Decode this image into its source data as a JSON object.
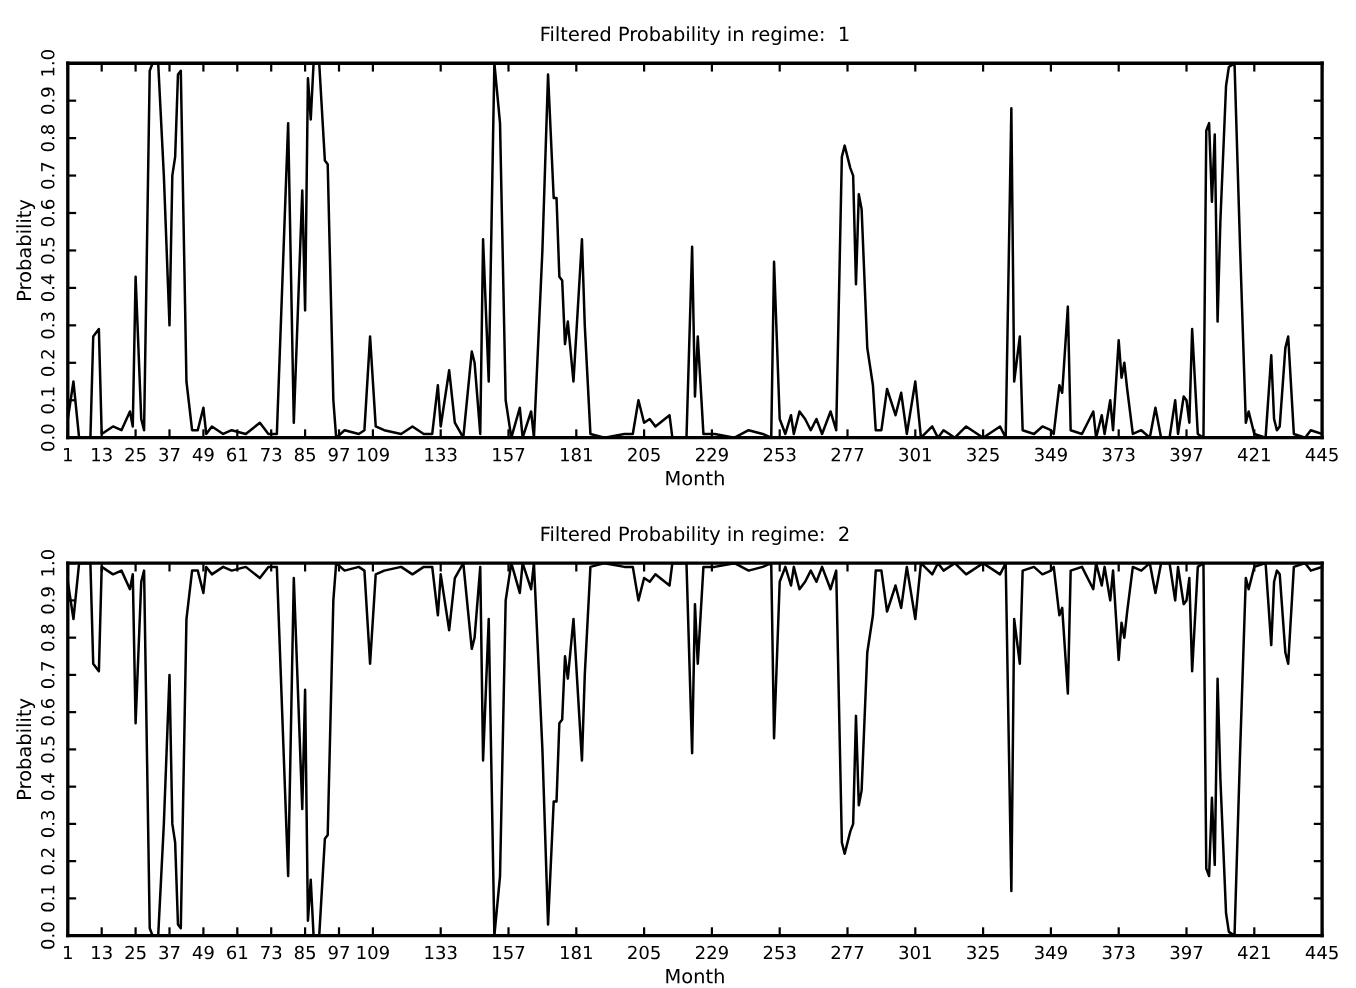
{
  "chart_data": [
    {
      "type": "line",
      "title": "Filtered Probability in regime:  1",
      "xlabel": "Month",
      "ylabel": "Probability",
      "x": [
        1,
        3,
        5,
        9,
        10,
        12,
        13,
        17,
        20,
        23,
        24,
        25,
        27,
        28,
        30,
        31,
        33,
        35,
        37,
        38,
        39,
        40,
        41,
        43,
        45,
        47,
        49,
        50,
        52,
        56,
        59,
        64,
        69,
        72,
        75,
        79,
        81,
        84,
        85,
        86,
        87,
        88,
        90,
        92,
        93,
        95,
        96,
        99,
        104,
        106,
        108,
        110,
        113,
        119,
        123,
        127,
        130,
        132,
        133,
        136,
        138,
        141,
        144,
        145,
        147,
        148,
        150,
        152,
        154,
        156,
        158,
        161,
        162,
        165,
        166,
        169,
        171,
        173,
        174,
        175,
        176,
        177,
        178,
        180,
        183,
        184,
        186,
        191,
        198,
        201,
        203,
        205,
        207,
        209,
        214,
        215,
        220,
        222,
        223,
        224,
        226,
        230,
        237,
        242,
        247,
        250,
        251,
        253,
        255,
        257,
        258,
        260,
        262,
        264,
        266,
        268,
        271,
        273,
        275,
        276,
        278,
        279,
        280,
        281,
        282,
        284,
        286,
        287,
        289,
        291,
        294,
        296,
        298,
        301,
        303,
        307,
        309,
        311,
        315,
        319,
        325,
        331,
        333,
        335,
        336,
        338,
        339,
        343,
        346,
        349,
        350,
        352,
        353,
        355,
        356,
        360,
        364,
        365,
        367,
        368,
        370,
        371,
        373,
        374,
        375,
        376,
        378,
        381,
        384,
        386,
        388,
        391,
        393,
        394,
        396,
        397,
        398,
        399,
        401,
        403,
        404,
        405,
        406,
        407,
        408,
        409,
        411,
        412,
        414,
        416,
        418,
        419,
        421,
        425,
        427,
        428,
        429,
        430,
        432,
        433,
        435,
        439,
        441,
        445
      ],
      "series": [
        {
          "color": "#000000",
          "values": [
            0.05,
            0.15,
            0.0,
            0.0,
            0.27,
            0.29,
            0.01,
            0.03,
            0.02,
            0.07,
            0.03,
            0.43,
            0.05,
            0.02,
            0.98,
            1.0,
            1.0,
            0.7,
            0.3,
            0.7,
            0.75,
            0.97,
            0.98,
            0.15,
            0.02,
            0.02,
            0.08,
            0.01,
            0.03,
            0.01,
            0.02,
            0.01,
            0.04,
            0.01,
            0.01,
            0.84,
            0.04,
            0.66,
            0.34,
            0.96,
            0.85,
            1.0,
            1.0,
            0.74,
            0.73,
            0.1,
            0.0,
            0.02,
            0.01,
            0.02,
            0.27,
            0.03,
            0.02,
            0.01,
            0.03,
            0.01,
            0.01,
            0.14,
            0.03,
            0.18,
            0.04,
            0.0,
            0.23,
            0.2,
            0.01,
            0.53,
            0.15,
            1.0,
            0.84,
            0.1,
            0.0,
            0.08,
            0.0,
            0.07,
            0.0,
            0.5,
            0.97,
            0.64,
            0.64,
            0.43,
            0.42,
            0.25,
            0.31,
            0.15,
            0.53,
            0.3,
            0.01,
            0.0,
            0.01,
            0.01,
            0.1,
            0.04,
            0.05,
            0.03,
            0.06,
            0.0,
            0.0,
            0.51,
            0.11,
            0.27,
            0.01,
            0.01,
            0.0,
            0.02,
            0.01,
            0.0,
            0.47,
            0.05,
            0.01,
            0.06,
            0.01,
            0.07,
            0.05,
            0.02,
            0.05,
            0.01,
            0.07,
            0.02,
            0.75,
            0.78,
            0.72,
            0.7,
            0.41,
            0.65,
            0.61,
            0.24,
            0.14,
            0.02,
            0.02,
            0.13,
            0.06,
            0.12,
            0.01,
            0.15,
            0.0,
            0.03,
            0.0,
            0.02,
            0.0,
            0.03,
            0.0,
            0.03,
            0.0,
            0.88,
            0.15,
            0.27,
            0.02,
            0.01,
            0.03,
            0.02,
            0.01,
            0.14,
            0.12,
            0.35,
            0.02,
            0.01,
            0.07,
            0.0,
            0.06,
            0.01,
            0.1,
            0.02,
            0.26,
            0.16,
            0.2,
            0.13,
            0.01,
            0.02,
            0.0,
            0.08,
            0.0,
            0.0,
            0.1,
            0.01,
            0.11,
            0.1,
            0.04,
            0.29,
            0.01,
            0.0,
            0.82,
            0.84,
            0.63,
            0.81,
            0.31,
            0.58,
            0.94,
            0.99,
            1.0,
            0.5,
            0.04,
            0.07,
            0.01,
            0.0,
            0.22,
            0.05,
            0.02,
            0.03,
            0.24,
            0.27,
            0.01,
            0.0,
            0.02,
            0.01
          ]
        }
      ],
      "xlim": [
        1,
        445
      ],
      "xticks": [
        1,
        13,
        25,
        37,
        49,
        61,
        73,
        85,
        97,
        109,
        133,
        157,
        181,
        205,
        229,
        253,
        277,
        301,
        325,
        349,
        373,
        397,
        421,
        445
      ],
      "ylim": [
        0,
        1
      ],
      "yticks": [
        {
          "value": 0,
          "label": "0.0"
        },
        {
          "value": 0.1,
          "label": "0.1"
        },
        {
          "value": 0.2,
          "label": "0.2"
        },
        {
          "value": 0.3,
          "label": "0.3"
        },
        {
          "value": 0.4,
          "label": "0.4"
        },
        {
          "value": 0.5,
          "label": "0.5"
        },
        {
          "value": 0.6,
          "label": "0.6"
        },
        {
          "value": 0.7,
          "label": "0.7"
        },
        {
          "value": 0.8,
          "label": "0.8"
        },
        {
          "value": 0.9,
          "label": "0.9"
        },
        {
          "value": 1,
          "label": "1.0"
        }
      ]
    },
    {
      "type": "line",
      "title": "Filtered Probability in regime:  2",
      "xlabel": "Month",
      "ylabel": "Probability",
      "x": [
        1,
        3,
        5,
        9,
        10,
        12,
        13,
        17,
        20,
        23,
        24,
        25,
        27,
        28,
        30,
        31,
        33,
        35,
        37,
        38,
        39,
        40,
        41,
        43,
        45,
        47,
        49,
        50,
        52,
        56,
        59,
        64,
        69,
        72,
        75,
        79,
        81,
        84,
        85,
        86,
        87,
        88,
        90,
        92,
        93,
        95,
        96,
        99,
        104,
        106,
        108,
        110,
        113,
        119,
        123,
        127,
        130,
        132,
        133,
        136,
        138,
        141,
        144,
        145,
        147,
        148,
        150,
        152,
        154,
        156,
        158,
        161,
        162,
        165,
        166,
        169,
        171,
        173,
        174,
        175,
        176,
        177,
        178,
        180,
        183,
        184,
        186,
        191,
        198,
        201,
        203,
        205,
        207,
        209,
        214,
        215,
        220,
        222,
        223,
        224,
        226,
        230,
        237,
        242,
        247,
        250,
        251,
        253,
        255,
        257,
        258,
        260,
        262,
        264,
        266,
        268,
        271,
        273,
        275,
        276,
        278,
        279,
        280,
        281,
        282,
        284,
        286,
        287,
        289,
        291,
        294,
        296,
        298,
        301,
        303,
        307,
        309,
        311,
        315,
        319,
        325,
        331,
        333,
        335,
        336,
        338,
        339,
        343,
        346,
        349,
        350,
        352,
        353,
        355,
        356,
        360,
        364,
        365,
        367,
        368,
        370,
        371,
        373,
        374,
        375,
        376,
        378,
        381,
        384,
        386,
        388,
        391,
        393,
        394,
        396,
        397,
        398,
        399,
        401,
        403,
        404,
        405,
        406,
        407,
        408,
        409,
        411,
        412,
        414,
        416,
        418,
        419,
        421,
        425,
        427,
        428,
        429,
        430,
        432,
        433,
        435,
        439,
        441,
        445
      ],
      "series": [
        {
          "color": "#000000",
          "values": [
            0.95,
            0.85,
            1.0,
            1.0,
            0.73,
            0.71,
            0.99,
            0.97,
            0.98,
            0.93,
            0.97,
            0.57,
            0.95,
            0.98,
            0.02,
            0.0,
            0.0,
            0.3,
            0.7,
            0.3,
            0.25,
            0.03,
            0.02,
            0.85,
            0.98,
            0.98,
            0.92,
            0.99,
            0.97,
            0.99,
            0.98,
            0.99,
            0.96,
            0.99,
            0.99,
            0.16,
            0.96,
            0.34,
            0.66,
            0.04,
            0.15,
            0.0,
            0.0,
            0.26,
            0.27,
            0.9,
            1.0,
            0.98,
            0.99,
            0.98,
            0.73,
            0.97,
            0.98,
            0.99,
            0.97,
            0.99,
            0.99,
            0.86,
            0.97,
            0.82,
            0.96,
            1.0,
            0.77,
            0.8,
            0.99,
            0.47,
            0.85,
            0.0,
            0.16,
            0.9,
            1.0,
            0.92,
            1.0,
            0.93,
            1.0,
            0.5,
            0.03,
            0.36,
            0.36,
            0.57,
            0.58,
            0.75,
            0.69,
            0.85,
            0.47,
            0.7,
            0.99,
            1.0,
            0.99,
            0.99,
            0.9,
            0.96,
            0.95,
            0.97,
            0.94,
            1.0,
            1.0,
            0.49,
            0.89,
            0.73,
            0.99,
            0.99,
            1.0,
            0.98,
            0.99,
            1.0,
            0.53,
            0.95,
            0.99,
            0.94,
            0.99,
            0.93,
            0.95,
            0.98,
            0.95,
            0.99,
            0.93,
            0.98,
            0.25,
            0.22,
            0.28,
            0.3,
            0.59,
            0.35,
            0.39,
            0.76,
            0.86,
            0.98,
            0.98,
            0.87,
            0.94,
            0.88,
            0.99,
            0.85,
            1.0,
            0.97,
            1.0,
            0.98,
            1.0,
            0.97,
            1.0,
            0.97,
            1.0,
            0.12,
            0.85,
            0.73,
            0.98,
            0.99,
            0.97,
            0.98,
            0.99,
            0.86,
            0.88,
            0.65,
            0.98,
            0.99,
            0.93,
            1.0,
            0.94,
            0.99,
            0.9,
            0.98,
            0.74,
            0.84,
            0.8,
            0.87,
            0.99,
            0.98,
            1.0,
            0.92,
            1.0,
            1.0,
            0.9,
            0.99,
            0.89,
            0.9,
            0.96,
            0.71,
            0.99,
            1.0,
            0.18,
            0.16,
            0.37,
            0.19,
            0.69,
            0.42,
            0.06,
            0.01,
            0.0,
            0.5,
            0.96,
            0.93,
            0.99,
            1.0,
            0.78,
            0.95,
            0.98,
            0.97,
            0.76,
            0.73,
            0.99,
            1.0,
            0.98,
            0.99
          ]
        }
      ],
      "xlim": [
        1,
        445
      ],
      "xticks": [
        1,
        13,
        25,
        37,
        49,
        61,
        73,
        85,
        97,
        109,
        133,
        157,
        181,
        205,
        229,
        253,
        277,
        301,
        325,
        349,
        373,
        397,
        421,
        445
      ],
      "ylim": [
        0,
        1
      ],
      "yticks": [
        {
          "value": 0,
          "label": "0.0"
        },
        {
          "value": 0.1,
          "label": "0.1"
        },
        {
          "value": 0.2,
          "label": "0.2"
        },
        {
          "value": 0.3,
          "label": "0.3"
        },
        {
          "value": 0.4,
          "label": "0.4"
        },
        {
          "value": 0.5,
          "label": "0.5"
        },
        {
          "value": 0.6,
          "label": "0.6"
        },
        {
          "value": 0.7,
          "label": "0.7"
        },
        {
          "value": 0.8,
          "label": "0.8"
        },
        {
          "value": 0.9,
          "label": "0.9"
        },
        {
          "value": 1,
          "label": "1.0"
        }
      ]
    }
  ]
}
